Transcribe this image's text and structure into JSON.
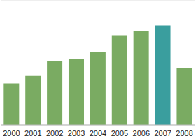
{
  "chart_data": {
    "type": "bar",
    "categories": [
      "2000",
      "2001",
      "2002",
      "2003",
      "2004",
      "2005",
      "2006",
      "2007",
      "2008"
    ],
    "values": [
      1.67,
      1.97,
      2.56,
      2.67,
      2.92,
      3.61,
      3.78,
      4.0,
      2.28
    ],
    "colors": [
      "#7aab62",
      "#7aab62",
      "#7aab62",
      "#7aab62",
      "#7aab62",
      "#7aab62",
      "#7aab62",
      "#3a9e9e",
      "#7aab62"
    ],
    "ylim": [
      0,
      5
    ],
    "yticks": [
      0,
      1,
      2,
      3,
      4,
      5
    ],
    "grid": true,
    "tick_labels": "x"
  }
}
